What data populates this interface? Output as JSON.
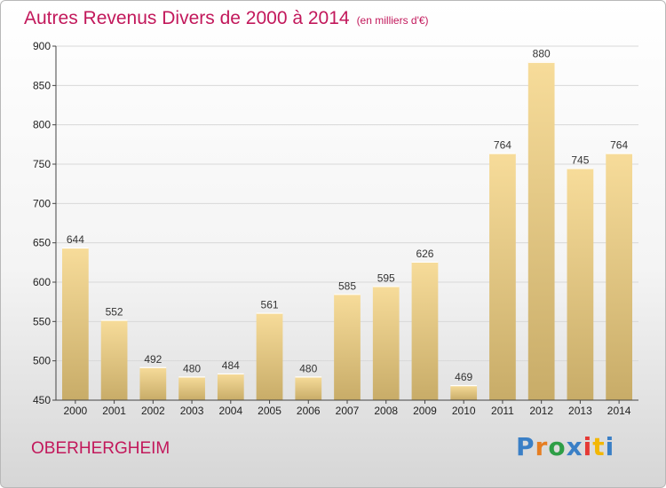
{
  "header": {
    "title": "Autres Revenus Divers de 2000 à 2014",
    "unit": "(en milliers d'€)"
  },
  "footer": {
    "commune": "OBERHERGHEIM",
    "logo": "Proxiti"
  },
  "chart_data": {
    "type": "bar",
    "title": "Autres Revenus Divers de 2000 à 2014",
    "xlabel": "",
    "ylabel": "",
    "categories": [
      "2000",
      "2001",
      "2002",
      "2003",
      "2004",
      "2005",
      "2006",
      "2007",
      "2008",
      "2009",
      "2010",
      "2011",
      "2012",
      "2013",
      "2014"
    ],
    "values": [
      644,
      552,
      492,
      480,
      484,
      561,
      480,
      585,
      595,
      626,
      469,
      764,
      880,
      745,
      764
    ],
    "ylim": [
      450,
      900
    ],
    "yticks": [
      450,
      500,
      550,
      600,
      650,
      700,
      750,
      800,
      850,
      900
    ],
    "grid": true,
    "bar_color": "#e9c97a"
  }
}
